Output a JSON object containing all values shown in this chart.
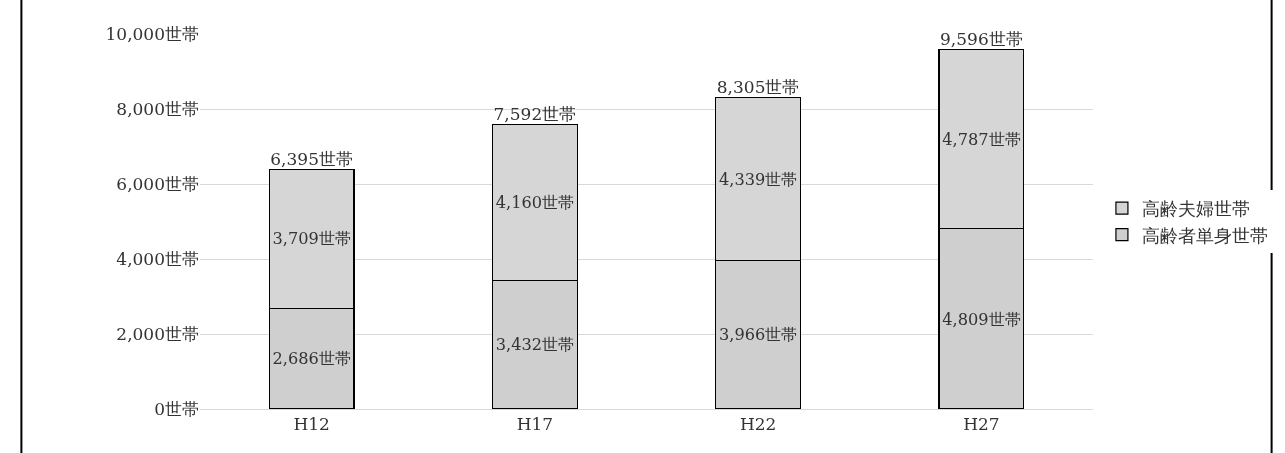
{
  "chart_data": {
    "type": "bar",
    "stacked": true,
    "categories": [
      "H12",
      "H17",
      "H22",
      "H27"
    ],
    "series": [
      {
        "name": "高齢者単身世帯",
        "color": "#cfcfcf",
        "values": [
          2686,
          3432,
          3966,
          4809
        ],
        "value_labels": [
          "2,686世帯",
          "3,432世帯",
          "3,966世帯",
          "4,809世帯"
        ]
      },
      {
        "name": "高齢夫婦世帯",
        "color": "#d6d6d6",
        "values": [
          3709,
          4160,
          4339,
          4787
        ],
        "value_labels": [
          "3,709世帯",
          "4,160世帯",
          "4,339世帯",
          "4,787世帯"
        ]
      }
    ],
    "totals": [
      "6,395世帯",
      "7,592世帯",
      "8,305世帯",
      "9,596世帯"
    ],
    "ylim": [
      0,
      10000
    ],
    "yticks": [
      {
        "value": 0,
        "label": "0世帯"
      },
      {
        "value": 2000,
        "label": "2,000世帯"
      },
      {
        "value": 4000,
        "label": "4,000世帯"
      },
      {
        "value": 6000,
        "label": "6,000世帯"
      },
      {
        "value": 8000,
        "label": "8,000世帯"
      },
      {
        "value": 10000,
        "label": "10,000世帯"
      }
    ],
    "grid": "y",
    "legend": "right"
  }
}
